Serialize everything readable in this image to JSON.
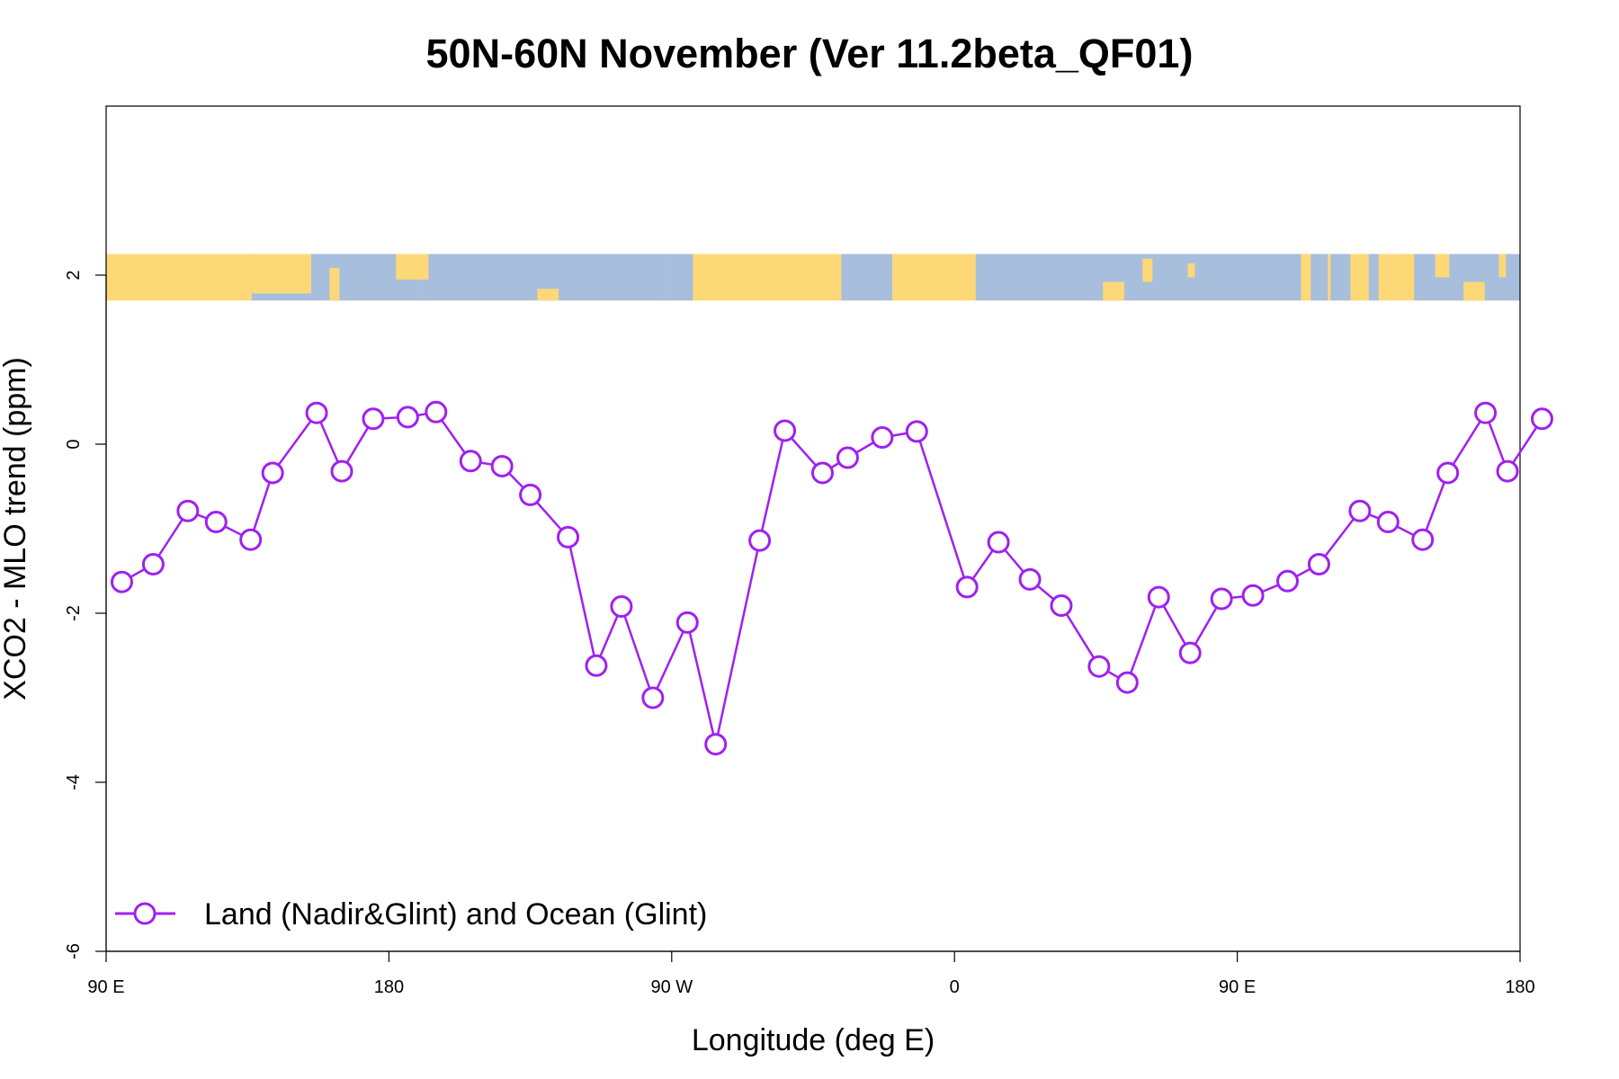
{
  "chart_data": {
    "type": "line",
    "title": "50N-60N November (Ver 11.2beta_QF01)",
    "xlabel": "Longitude (deg E)",
    "ylabel": "XCO2 - MLO trend (ppm)",
    "xlim": [
      90,
      540
    ],
    "ylim": [
      -6,
      4
    ],
    "x_ticks": [
      {
        "value": 90,
        "label": "90 E"
      },
      {
        "value": 180,
        "label": "180"
      },
      {
        "value": 270,
        "label": "90 W"
      },
      {
        "value": 360,
        "label": "0"
      },
      {
        "value": 450,
        "label": "90 E"
      },
      {
        "value": 540,
        "label": "180"
      }
    ],
    "y_ticks": [
      {
        "value": 2,
        "label": "2"
      },
      {
        "value": 0,
        "label": "0"
      },
      {
        "value": -2,
        "label": "-2"
      },
      {
        "value": -4,
        "label": "-4"
      },
      {
        "value": -6,
        "label": "-6"
      }
    ],
    "grid": false,
    "legend_position": "bottom-left",
    "map_band": {
      "y_range": [
        1.7,
        2.25
      ],
      "land_color": "#fdd876",
      "ocean_color": "#a8bedd"
    },
    "series": [
      {
        "name": "Land (Nadir&Glint) and Ocean (Glint)",
        "color": "#a020f0",
        "marker": "open-circle",
        "x": [
          95,
          105,
          116,
          125,
          136,
          143,
          157,
          165,
          175,
          186,
          195,
          206,
          216,
          225,
          237,
          246,
          254,
          264,
          275,
          284,
          298,
          306,
          318,
          326,
          337,
          348,
          364,
          374,
          384,
          394,
          406,
          415,
          425,
          435,
          445,
          455,
          466,
          476,
          489,
          498,
          509,
          517,
          529,
          536,
          547
        ],
        "y": [
          -1.63,
          -1.42,
          -0.79,
          -0.92,
          -1.13,
          -0.34,
          0.37,
          -0.32,
          0.3,
          0.32,
          0.38,
          -0.2,
          -0.26,
          -0.6,
          -1.1,
          -2.62,
          -1.92,
          -3.0,
          -2.11,
          -3.55,
          -1.14,
          0.16,
          -0.34,
          -0.16,
          0.08,
          0.15,
          -1.69,
          -1.16,
          -1.6,
          -1.91,
          -2.63,
          -2.82,
          -1.81,
          -2.47,
          -1.83,
          -1.79,
          -1.62,
          -1.42,
          -0.79,
          -0.92,
          -1.13,
          -0.34,
          0.37,
          -0.32,
          0.3
        ]
      }
    ]
  }
}
